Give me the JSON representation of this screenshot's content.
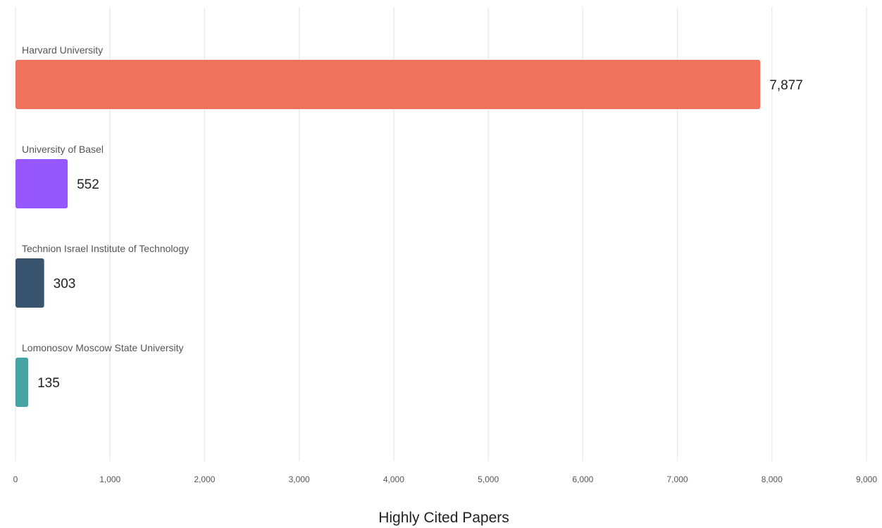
{
  "chart_data": {
    "type": "bar",
    "orientation": "horizontal",
    "categories": [
      "Harvard University",
      "University of Basel",
      "Technion Israel Institute of Technology",
      "Lomonosov Moscow State University"
    ],
    "values": [
      7877,
      552,
      303,
      135
    ],
    "value_labels": [
      "7,877",
      "552",
      "303",
      "135"
    ],
    "colors": [
      "#ef725c",
      "#9657ff",
      "#38546f",
      "#45a3a3"
    ],
    "xlabel": "Highly Cited Papers",
    "xlim": [
      0,
      9000
    ],
    "xticks": [
      0,
      1000,
      2000,
      3000,
      4000,
      5000,
      6000,
      7000,
      8000,
      9000
    ],
    "xtick_labels": [
      "0",
      "1,000",
      "2,000",
      "3,000",
      "4,000",
      "5,000",
      "6,000",
      "7,000",
      "8,000",
      "9,000"
    ],
    "grid": true,
    "legend": "none"
  }
}
